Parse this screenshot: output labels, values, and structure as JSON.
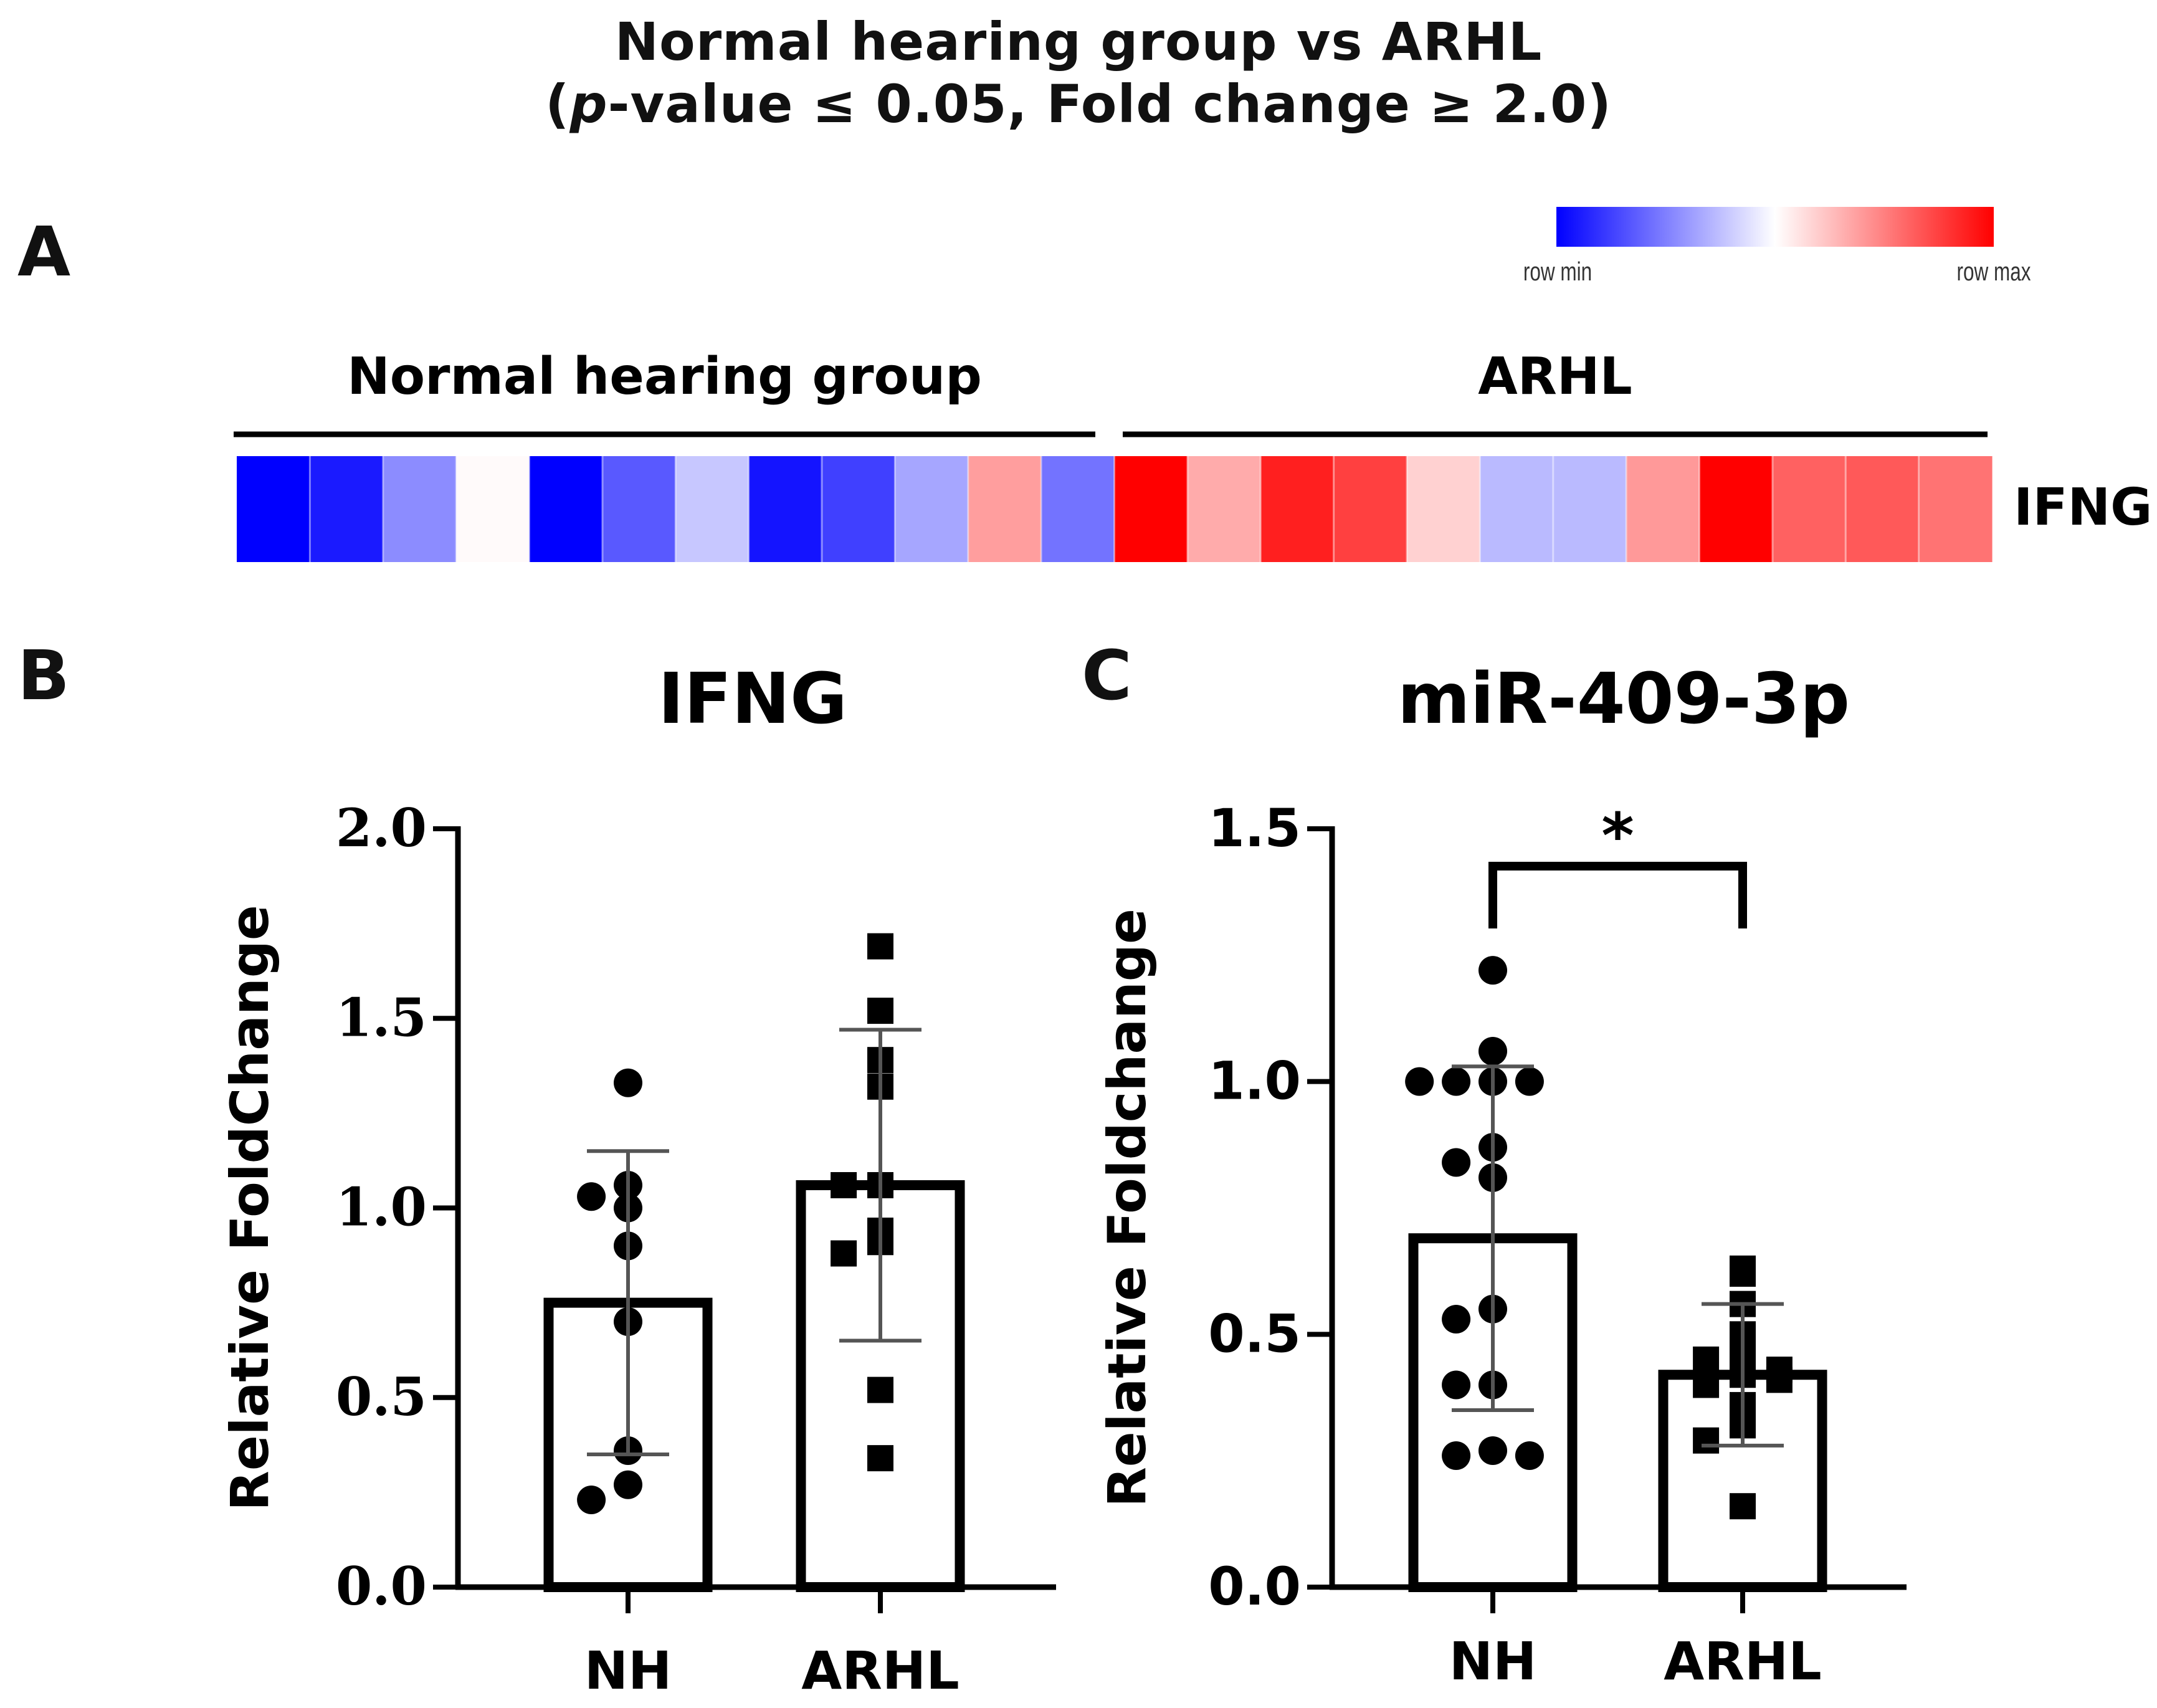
{
  "figure": {
    "title_line1": "Normal hearing group vs ARHL",
    "title_line2_pre": "(",
    "title_line2_p": "p",
    "title_line2_post": "-value ≤ 0.05, Fold change ≥ 2.0)"
  },
  "colors": {
    "min": "#0000ff",
    "mid": "#ffffff",
    "max": "#ff0000",
    "ink": "#000000"
  },
  "chart_data": [
    {
      "panel": "A",
      "type": "heatmap",
      "row_label": "IFNG",
      "groups": [
        {
          "name": "Normal hearing group",
          "n": 12
        },
        {
          "name": "ARHL",
          "n": 12
        }
      ],
      "legend": {
        "min_label": "row min",
        "max_label": "row max"
      },
      "values": [
        -1.0,
        -0.9,
        -0.45,
        0.02,
        -1.0,
        -0.65,
        -0.22,
        -0.92,
        -0.75,
        -0.35,
        0.38,
        -0.55,
        1.0,
        0.33,
        0.88,
        0.75,
        0.18,
        -0.27,
        -0.27,
        0.4,
        1.0,
        0.62,
        0.65,
        0.55
      ]
    },
    {
      "panel": "B",
      "type": "bar",
      "title": "IFNG",
      "xlabel": "",
      "ylabel": "Relative FoldChange",
      "ylim": [
        0,
        2.0
      ],
      "yticks": [
        0.0,
        0.5,
        1.0,
        1.5,
        2.0
      ],
      "ytick_labels": [
        "0.0",
        "0.5",
        "1.0",
        "1.5",
        "2.0"
      ],
      "categories": [
        "NH",
        "ARHL"
      ],
      "values": [
        0.75,
        1.06
      ],
      "sd": [
        0.4,
        0.41
      ],
      "points": [
        {
          "marker": "circle",
          "y": [
            1.33,
            1.06,
            1.0,
            1.03,
            0.9,
            0.7,
            0.36,
            0.27,
            0.23
          ]
        },
        {
          "marker": "square",
          "y": [
            1.69,
            1.52,
            1.39,
            1.32,
            1.06,
            1.06,
            0.94,
            0.91,
            0.88,
            0.52,
            0.34
          ]
        }
      ],
      "significance": ""
    },
    {
      "panel": "C",
      "type": "bar",
      "title": "miR-409-3p",
      "xlabel": "",
      "ylabel": "Relative Foldchange",
      "ylim": [
        0,
        1.5
      ],
      "yticks": [
        0.0,
        0.5,
        1.0,
        1.5
      ],
      "ytick_labels": [
        "0.0",
        "0.5",
        "1.0",
        "1.5"
      ],
      "categories": [
        "NH",
        "ARHL"
      ],
      "values": [
        0.69,
        0.42
      ],
      "sd": [
        0.34,
        0.14
      ],
      "points": [
        {
          "marker": "circle",
          "y": [
            1.22,
            1.06,
            1.0,
            1.0,
            1.0,
            1.0,
            0.87,
            0.84,
            0.81,
            0.55,
            0.53,
            0.4,
            0.4,
            0.27,
            0.26,
            0.26
          ]
        },
        {
          "marker": "square",
          "y": [
            0.62,
            0.63,
            0.56,
            0.5,
            0.47,
            0.45,
            0.43,
            0.42,
            0.4,
            0.41,
            0.36,
            0.32,
            0.29,
            0.16
          ]
        }
      ],
      "significance": "*"
    }
  ],
  "panels": {
    "a": "A",
    "b": "B",
    "c": "C"
  }
}
